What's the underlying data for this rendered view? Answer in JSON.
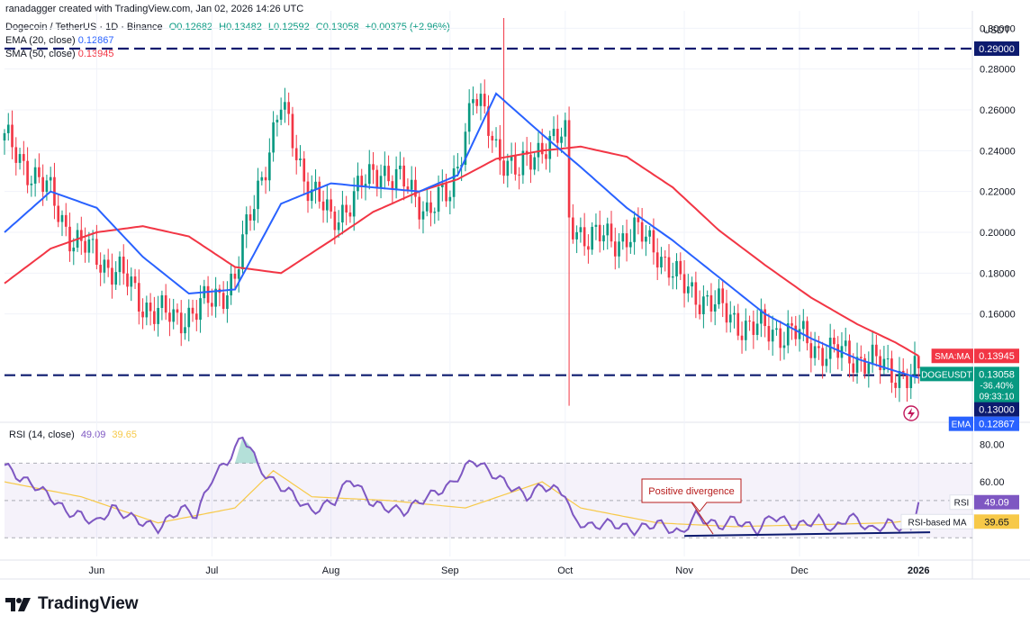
{
  "header": {
    "created": "ranadagger created with TradingView.com, Jan 02, 2026 14:26 UTC"
  },
  "symbol_line": {
    "name": "Dogecoin / TetherUS · 1D · Binance",
    "O": "O0.12682",
    "H": "H0.13482",
    "L": "L0.12592",
    "C": "C0.13058",
    "chg": "+0.00375 (+2.96%)"
  },
  "ema_line": {
    "label": "EMA (20, close)",
    "value": "0.12867"
  },
  "sma_line": {
    "label": "SMA (50, close)",
    "value": "0.13945"
  },
  "rsi_line": {
    "label": "RSI (14, close)",
    "value": "49.09",
    "ma": "39.65"
  },
  "colors": {
    "up": "#089981",
    "down": "#f23645",
    "ema": "#2962ff",
    "sma": "#f23645",
    "rsi": "#7e57c2",
    "rsi_ma": "#f7c948",
    "level": "#0d1b6f"
  },
  "logo": {
    "text": "TradingView"
  },
  "chart_data": [
    {
      "type": "candlestick",
      "title": "Dogecoin / TetherUS · 1D · Binance",
      "ylabel": "USDT",
      "ylim": [
        0.11,
        0.305
      ],
      "y_ticks": [
        "0.30000",
        "0.28000",
        "0.26000",
        "0.24000",
        "0.22000",
        "0.20000",
        "0.18000",
        "0.16000"
      ],
      "x_ticks": [
        "Jun",
        "Jul",
        "Aug",
        "Sep",
        "Oct",
        "Nov",
        "Dec",
        "2026"
      ],
      "x_tick_days": [
        24,
        54,
        85,
        116,
        146,
        177,
        207,
        238
      ],
      "x_range_days": [
        0,
        252
      ],
      "close_path_days": [
        0,
        6,
        12,
        18,
        24,
        30,
        36,
        44,
        54,
        60,
        66,
        72,
        78,
        85,
        92,
        98,
        104,
        110,
        116,
        122,
        128,
        134,
        140,
        146,
        147,
        152,
        158,
        164,
        170,
        176,
        182,
        188,
        194,
        200,
        206,
        212,
        218,
        224,
        230,
        236,
        238
      ],
      "close_path_values": [
        0.245,
        0.232,
        0.218,
        0.196,
        0.188,
        0.18,
        0.165,
        0.157,
        0.166,
        0.178,
        0.222,
        0.262,
        0.228,
        0.205,
        0.22,
        0.232,
        0.223,
        0.212,
        0.218,
        0.268,
        0.242,
        0.228,
        0.244,
        0.246,
        0.205,
        0.198,
        0.196,
        0.2,
        0.192,
        0.174,
        0.168,
        0.16,
        0.153,
        0.152,
        0.15,
        0.143,
        0.14,
        0.138,
        0.133,
        0.129,
        0.13058
      ],
      "spike_low": {
        "day": 147,
        "value": 0.115
      },
      "sep_spike_high": {
        "day": 130,
        "value": 0.308
      },
      "ema20": {
        "days": [
          0,
          12,
          24,
          36,
          48,
          60,
          72,
          85,
          96,
          108,
          118,
          128,
          140,
          150,
          162,
          174,
          186,
          198,
          210,
          222,
          232,
          238
        ],
        "values": [
          0.2,
          0.22,
          0.212,
          0.188,
          0.17,
          0.172,
          0.214,
          0.224,
          0.222,
          0.22,
          0.228,
          0.268,
          0.248,
          0.232,
          0.212,
          0.196,
          0.178,
          0.16,
          0.148,
          0.138,
          0.132,
          0.12867
        ]
      },
      "sma50": {
        "days": [
          0,
          12,
          24,
          36,
          48,
          60,
          72,
          85,
          96,
          108,
          118,
          128,
          140,
          150,
          162,
          174,
          186,
          198,
          210,
          222,
          232,
          238
        ],
        "values": [
          0.175,
          0.192,
          0.2,
          0.203,
          0.198,
          0.183,
          0.18,
          0.196,
          0.21,
          0.22,
          0.226,
          0.236,
          0.24,
          0.242,
          0.237,
          0.222,
          0.201,
          0.184,
          0.168,
          0.155,
          0.146,
          0.13945
        ]
      },
      "levels": [
        {
          "value": 0.29,
          "label": "0.29000"
        },
        {
          "value": 0.13,
          "label": "0.13000"
        }
      ],
      "price_tags": [
        {
          "name": "SMA:MA",
          "value": "0.13945",
          "color": "#f23645"
        },
        {
          "name": "DOGEUSDT",
          "value": "0.13058",
          "color": "#089981",
          "sub1": "-36.40%",
          "sub2": "09:33:10"
        },
        {
          "name": "",
          "value": "0.13000",
          "color": "#0d1b6f"
        },
        {
          "name": "EMA",
          "value": "0.12867",
          "color": "#2962ff"
        }
      ]
    },
    {
      "type": "line",
      "title": "RSI (14, close)",
      "ylim": [
        20,
        90
      ],
      "y_ticks": [
        "80.00",
        "60.00"
      ],
      "bands": [
        30,
        50,
        70
      ],
      "rsi_days": [
        0,
        4,
        8,
        12,
        16,
        20,
        24,
        28,
        34,
        40,
        46,
        50,
        54,
        58,
        62,
        64,
        66,
        70,
        74,
        80,
        86,
        90,
        96,
        104,
        110,
        116,
        122,
        126,
        130,
        136,
        140,
        146,
        148,
        152,
        158,
        164,
        170,
        176,
        180,
        186,
        190,
        196,
        200,
        206,
        212,
        216,
        220,
        226,
        230,
        236,
        238
      ],
      "rsi_values": [
        69,
        62,
        58,
        52,
        44,
        42,
        38,
        46,
        40,
        35,
        46,
        42,
        62,
        71,
        84,
        79,
        68,
        60,
        55,
        44,
        50,
        62,
        48,
        44,
        52,
        58,
        72,
        66,
        60,
        52,
        58,
        54,
        40,
        36,
        38,
        34,
        38,
        32,
        42,
        36,
        40,
        34,
        42,
        36,
        40,
        34,
        42,
        34,
        38,
        34,
        49.09
      ],
      "rsi_ma_days": [
        0,
        20,
        40,
        60,
        70,
        80,
        100,
        120,
        140,
        150,
        170,
        190,
        210,
        230,
        238
      ],
      "rsi_ma_values": [
        60,
        52,
        38,
        46,
        66,
        52,
        50,
        46,
        60,
        46,
        38,
        36,
        37,
        38,
        39.65
      ],
      "divergence_line": {
        "from_day": 177,
        "from_value": 31,
        "to_day": 241,
        "to_value": 33
      },
      "annotation": "Positive divergence",
      "tags": [
        {
          "name": "RSI",
          "value": "49.09",
          "color": "#7e57c2"
        },
        {
          "name": "RSI-based MA",
          "value": "39.65",
          "color": "#f7c948"
        }
      ]
    }
  ]
}
